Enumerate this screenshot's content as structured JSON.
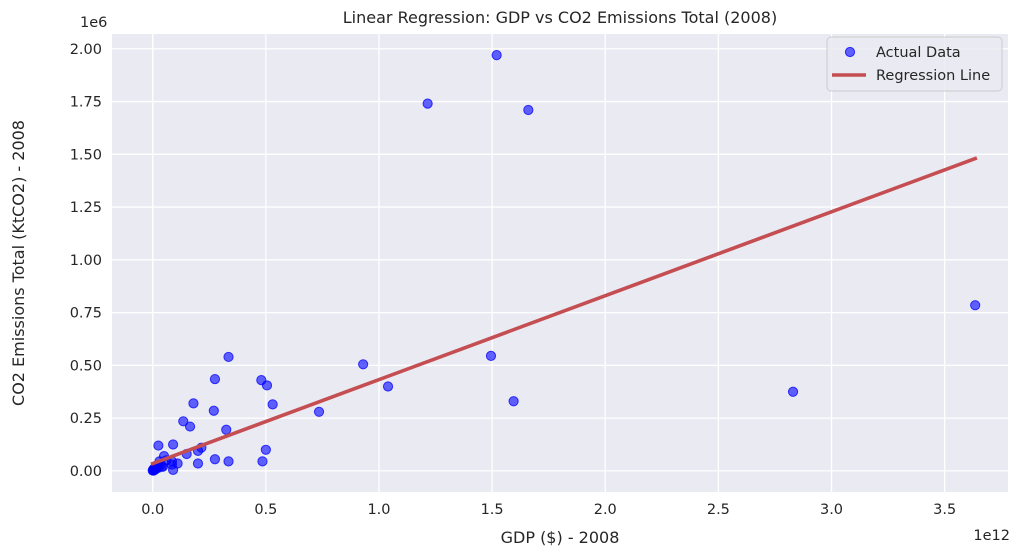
{
  "chart_data": {
    "type": "scatter",
    "title": "Linear Regression: GDP vs CO2 Emissions Total (2008)",
    "xlabel": "GDP ($) - 2008",
    "ylabel": "CO2 Emissions Total (KtCO2) - 2008",
    "x_offset_text": "1e12",
    "y_offset_text": "1e6",
    "x_scale": 1000000000000.0,
    "y_scale": 1000000.0,
    "xlim": [
      -180000000000.0,
      3780000000000.0
    ],
    "ylim": [
      -100000.0,
      2070000.0
    ],
    "x_ticks": [
      0,
      500000000000.0,
      1000000000000.0,
      1500000000000.0,
      2000000000000.0,
      2500000000000.0,
      3000000000000.0,
      3500000000000.0
    ],
    "x_tick_labels": [
      "0.0",
      "0.5",
      "1.0",
      "1.5",
      "2.0",
      "2.5",
      "3.0",
      "3.5"
    ],
    "y_ticks": [
      0,
      250000.0,
      500000.0,
      750000.0,
      1000000.0,
      1250000.0,
      1500000.0,
      1750000.0,
      2000000.0
    ],
    "y_tick_labels": [
      "0.00",
      "0.25",
      "0.50",
      "0.75",
      "1.00",
      "1.25",
      "1.50",
      "1.75",
      "2.00"
    ],
    "grid": true,
    "legend_position": "upper right",
    "colors": {
      "background": "#eaeaf2",
      "grid": "#ffffff",
      "points": "#0000ff",
      "regression": "#c44e52"
    },
    "series": [
      {
        "name": "Actual Data",
        "kind": "scatter",
        "x": [
          1520000000000.0,
          1215000000000.0,
          1660000000000.0,
          3635000000000.0,
          2830000000000.0,
          930000000000.0,
          1495000000000.0,
          1040000000000.0,
          1595000000000.0,
          335000000000.0,
          275000000000.0,
          480000000000.0,
          505000000000.0,
          530000000000.0,
          180000000000.0,
          735000000000.0,
          270000000000.0,
          135000000000.0,
          165000000000.0,
          325000000000.0,
          25000000000.0,
          90000000000.0,
          200000000000.0,
          215000000000.0,
          150000000000.0,
          50000000000.0,
          110000000000.0,
          85000000000.0,
          275000000000.0,
          335000000000.0,
          485000000000.0,
          500000000000.0,
          200000000000.0,
          85000000000.0,
          90000000000.0,
          60000000000.0,
          30000000000.0,
          40000000000.0,
          20000000000.0,
          10000000000.0,
          5000000000.0,
          0.0,
          2000000000.0,
          15000000000.0,
          25000000000.0,
          35000000000.0,
          45000000000.0,
          8000000000.0,
          12000000000.0,
          3000000000.0
        ],
        "y": [
          1970000.0,
          1740000.0,
          1710000.0,
          785000.0,
          375000.0,
          505000.0,
          545000.0,
          400000.0,
          330000.0,
          540000.0,
          435000.0,
          430000.0,
          405000.0,
          315000.0,
          320000.0,
          280000.0,
          285000.0,
          235000.0,
          210000.0,
          195000.0,
          120000.0,
          125000.0,
          95000.0,
          110000.0,
          80000.0,
          70000.0,
          35000.0,
          45000.0,
          55000.0,
          45000.0,
          45000.0,
          100000.0,
          35000.0,
          30000.0,
          5000.0,
          50000.0,
          45000.0,
          20000.0,
          25000.0,
          15000.0,
          10000.0,
          2000.0,
          5000.0,
          10000.0,
          15000.0,
          30000.0,
          20000.0,
          4000.0,
          8000.0,
          1000.0
        ]
      },
      {
        "name": "Regression Line",
        "kind": "line",
        "x": [
          0,
          3635000000000.0
        ],
        "y": [
          35000.0,
          1480000.0
        ]
      }
    ]
  }
}
